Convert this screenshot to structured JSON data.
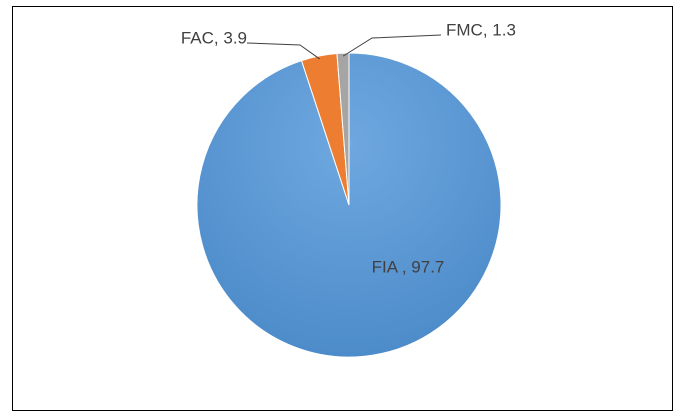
{
  "chart_data": {
    "type": "pie",
    "values": [
      97.7,
      3.9,
      1.3
    ],
    "value_labels": [
      "FIA , 97.7",
      "FAC, 3.9",
      "FMC, 1.3"
    ],
    "colors": [
      "#5b9bd5",
      "#ed7d31",
      "#a5a5a5"
    ]
  }
}
